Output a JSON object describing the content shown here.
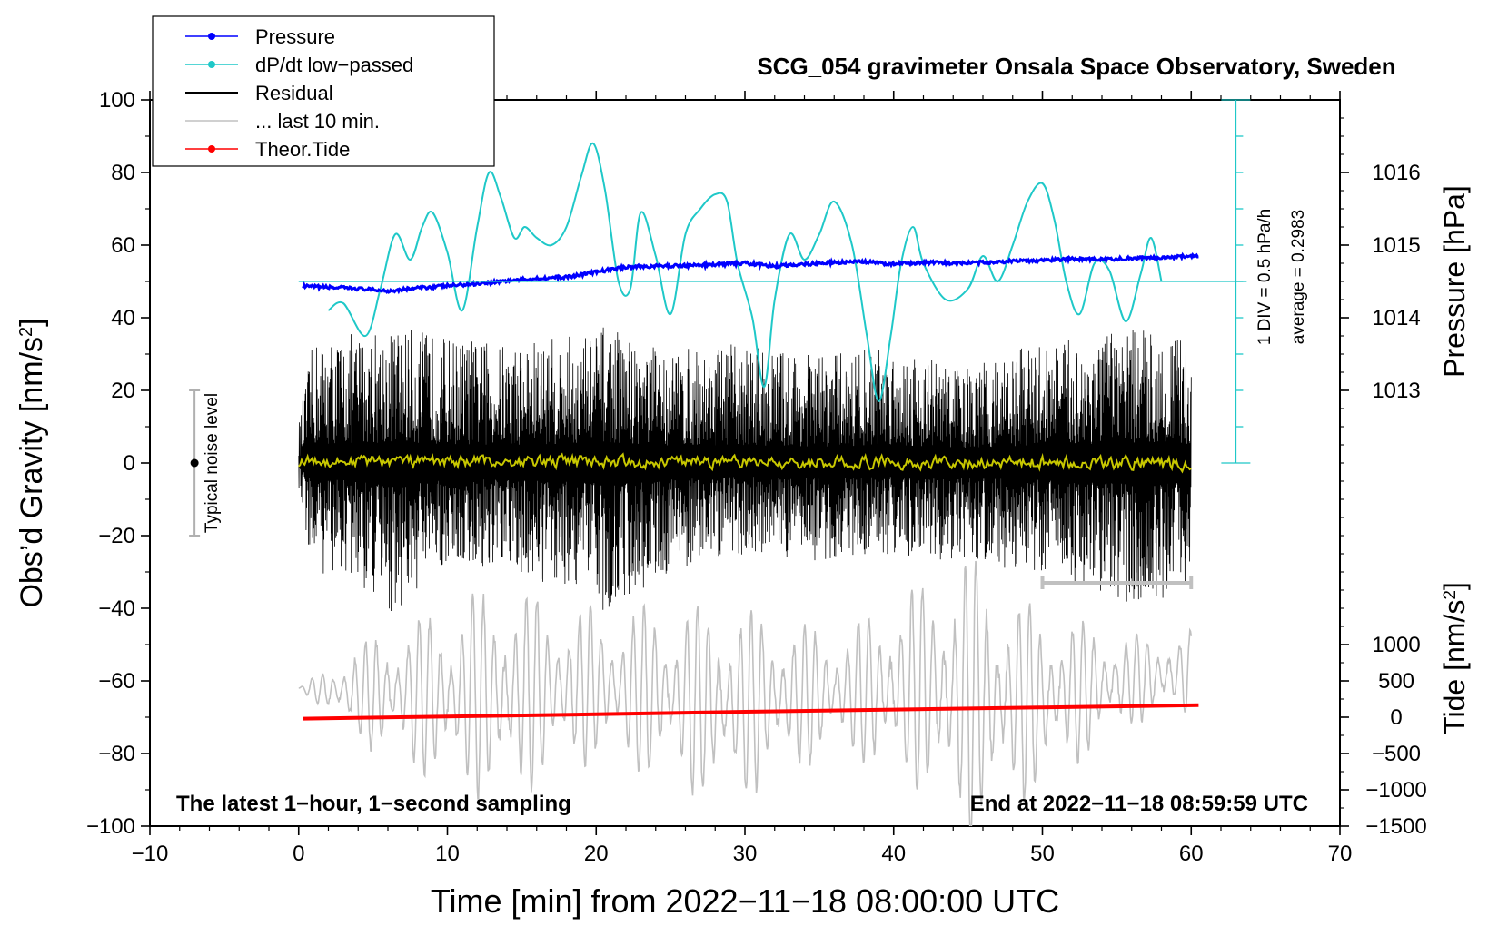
{
  "chart_data": {
    "type": "line",
    "title": "SCG_054 gravimeter Onsala Space Observatory, Sweden",
    "xlabel": "Time [min] from 2022−11−18 08:00:00 UTC",
    "ylabel": "Obs’d Gravity [nm/s²]",
    "ylabel_main": "Obs’d Gravity [nm/s",
    "ylabel_sup": "2",
    "ylabel_end": "]",
    "xlim": [
      -10,
      70
    ],
    "ylim": [
      -100,
      100
    ],
    "x_ticks": [
      -10,
      0,
      10,
      20,
      30,
      40,
      50,
      60,
      70
    ],
    "x_tick_labels": [
      "−10",
      "0",
      "10",
      "20",
      "30",
      "40",
      "50",
      "60",
      "70"
    ],
    "y_ticks": [
      -100,
      -80,
      -60,
      -40,
      -20,
      0,
      20,
      40,
      60,
      80,
      100
    ],
    "y_tick_labels": [
      "−100",
      "−80",
      "−60",
      "−40",
      "−20",
      "0",
      "20",
      "40",
      "60",
      "80",
      "100"
    ],
    "pressure_axis": {
      "label": "Pressure [hPa]",
      "ticks": [
        1013,
        1014,
        1015,
        1016
      ],
      "tick_labels": [
        "1013",
        "1014",
        "1015",
        "1016"
      ],
      "gravity_at_1013": 20,
      "gravity_per_hPa": 20
    },
    "tide_axis": {
      "label_main": "Tide [nm/s",
      "label_sup": "2",
      "label_end": "]",
      "ticks": [
        -1500,
        -1000,
        -500,
        0,
        500,
        1000
      ],
      "tick_labels": [
        "−1500",
        "−1000",
        "−500",
        "0",
        "500",
        "1000"
      ],
      "gravity_at_minus1500": -100,
      "gravity_per_nm": 0.02
    },
    "dpdt_scale": {
      "label_div": "1 DIV = 0.5 hPa/h",
      "label_avg": "average = 0.2983",
      "x": 63,
      "y_bottom": 0,
      "y_top": 100,
      "divisions": 10,
      "average_line_y": 50
    },
    "noise_level": {
      "label": "Typical noise level",
      "x": -7,
      "center": 0,
      "low": -20,
      "high": 20
    },
    "last10_bar": {
      "x_start": 50,
      "x_end": 60,
      "y": -33
    },
    "annotations": {
      "bottom_left": "The latest 1−hour, 1−second sampling",
      "bottom_right": "End at 2022−11−18 08:59:59 UTC"
    },
    "legend": [
      {
        "name": "Pressure",
        "color": "#0000ff",
        "marker": true
      },
      {
        "name": "dP/dt low−passed",
        "color": "#1fc8c8",
        "marker": true
      },
      {
        "name": "Residual",
        "color": "#000000",
        "marker": false
      },
      {
        "name": "... last 10 min.",
        "color": "#c0c0c0",
        "marker": false
      },
      {
        "name": "Theor.Tide",
        "color": "#ff0000",
        "marker": true
      }
    ],
    "series": [
      {
        "name": "Pressure",
        "color": "#0000ff",
        "axis": "pressure_hPa",
        "x": [
          0.3,
          2,
          4,
          6,
          8,
          10,
          12,
          14,
          16,
          18,
          20,
          22,
          24,
          26,
          28,
          30,
          32,
          34,
          36,
          38,
          40,
          42,
          44,
          46,
          48,
          50,
          52,
          54,
          56,
          58,
          60.5
        ],
        "values": [
          1014.43,
          1014.42,
          1014.4,
          1014.37,
          1014.41,
          1014.44,
          1014.47,
          1014.51,
          1014.54,
          1014.56,
          1014.63,
          1014.7,
          1014.71,
          1014.72,
          1014.73,
          1014.75,
          1014.71,
          1014.74,
          1014.76,
          1014.77,
          1014.74,
          1014.76,
          1014.75,
          1014.76,
          1014.78,
          1014.79,
          1014.81,
          1014.8,
          1014.82,
          1014.83,
          1014.85
        ]
      },
      {
        "name": "dP/dt low−passed",
        "color": "#1fc8c8",
        "axis": "gravity_scale",
        "x": [
          2,
          3,
          4.5,
          5.5,
          6.5,
          7.5,
          8.3,
          9,
          10,
          11,
          12,
          12.8,
          13.6,
          14.5,
          15.2,
          16,
          17,
          18,
          19,
          19.8,
          20.6,
          21.5,
          22.3,
          23,
          24,
          25,
          26,
          27,
          28,
          28.8,
          29.5,
          30.5,
          31.3,
          32,
          33,
          34,
          35,
          36,
          37.2,
          38.2,
          39,
          39.8,
          40.5,
          41.3,
          42,
          43.5,
          45,
          46,
          47,
          48,
          49,
          50,
          50.8,
          51.6,
          52.5,
          53.5,
          54.5,
          55.6,
          56.6,
          57.3,
          58
        ],
        "values": [
          42,
          44,
          35,
          48,
          63,
          56,
          65,
          69,
          58,
          42,
          65,
          80,
          73,
          62,
          65,
          62,
          60,
          65,
          79,
          88,
          75,
          50,
          48,
          69,
          57,
          41,
          63,
          70,
          74,
          72,
          55,
          40,
          21,
          45,
          63,
          56,
          63,
          72,
          60,
          35,
          17,
          35,
          55,
          65,
          55,
          45,
          48,
          57,
          50,
          60,
          72,
          77,
          67,
          50,
          41,
          55,
          53,
          39,
          52,
          62,
          50
        ]
      },
      {
        "name": "Residual",
        "color": "#000000",
        "axis": "gravity",
        "x_range": [
          0,
          60
        ],
        "envelope": [
          {
            "x": 0,
            "min": -8,
            "max": 11
          },
          {
            "x": 1,
            "min": -32,
            "max": 34
          },
          {
            "x": 2.5,
            "min": -30,
            "max": 35
          },
          {
            "x": 6.5,
            "min": -42,
            "max": 38
          },
          {
            "x": 10,
            "min": -28,
            "max": 35
          },
          {
            "x": 13.5,
            "min": -31,
            "max": 33
          },
          {
            "x": 19.5,
            "min": -35,
            "max": 36
          },
          {
            "x": 20.5,
            "min": -41,
            "max": 38
          },
          {
            "x": 25,
            "min": -30,
            "max": 31
          },
          {
            "x": 30,
            "min": -25,
            "max": 33
          },
          {
            "x": 35,
            "min": -27,
            "max": 30
          },
          {
            "x": 40,
            "min": -25,
            "max": 33
          },
          {
            "x": 45,
            "min": -28,
            "max": 26
          },
          {
            "x": 50,
            "min": -30,
            "max": 34
          },
          {
            "x": 52.4,
            "min": -34,
            "max": 34
          },
          {
            "x": 57.5,
            "min": -41,
            "max": 38
          },
          {
            "x": 60,
            "min": -33,
            "max": 32
          }
        ]
      },
      {
        "name": "Residual (smoothed)",
        "color": "#c8c800",
        "axis": "gravity",
        "x_range": [
          0,
          60
        ],
        "envelope": [
          {
            "x": 0,
            "min": -2,
            "max": 3
          },
          {
            "x": 60,
            "min": -3,
            "max": 3
          }
        ]
      },
      {
        "name": "... last 10 min.",
        "color": "#c0c0c0",
        "axis": "gravity",
        "x_range": [
          0,
          60
        ],
        "envelope": [
          {
            "x": 0,
            "min": -62,
            "max": -62
          },
          {
            "x": 5,
            "min": -80,
            "max": -47
          },
          {
            "x": 13.5,
            "min": -95,
            "max": -33
          },
          {
            "x": 20,
            "min": -82,
            "max": -40
          },
          {
            "x": 28.7,
            "min": -95,
            "max": -38
          },
          {
            "x": 36,
            "min": -80,
            "max": -46
          },
          {
            "x": 42,
            "min": -92,
            "max": -32
          },
          {
            "x": 45,
            "min": -105,
            "max": -25
          },
          {
            "x": 50,
            "min": -90,
            "max": -40
          },
          {
            "x": 56,
            "min": -72,
            "max": -47
          },
          {
            "x": 60,
            "min": -70,
            "max": -46
          }
        ]
      },
      {
        "name": "Theor.Tide",
        "color": "#ff0000",
        "axis": "tide_nm",
        "x": [
          0.3,
          10,
          20,
          30,
          40,
          50,
          60.5
        ],
        "values": [
          -20,
          10,
          40,
          75,
          105,
          135,
          165
        ]
      }
    ]
  }
}
